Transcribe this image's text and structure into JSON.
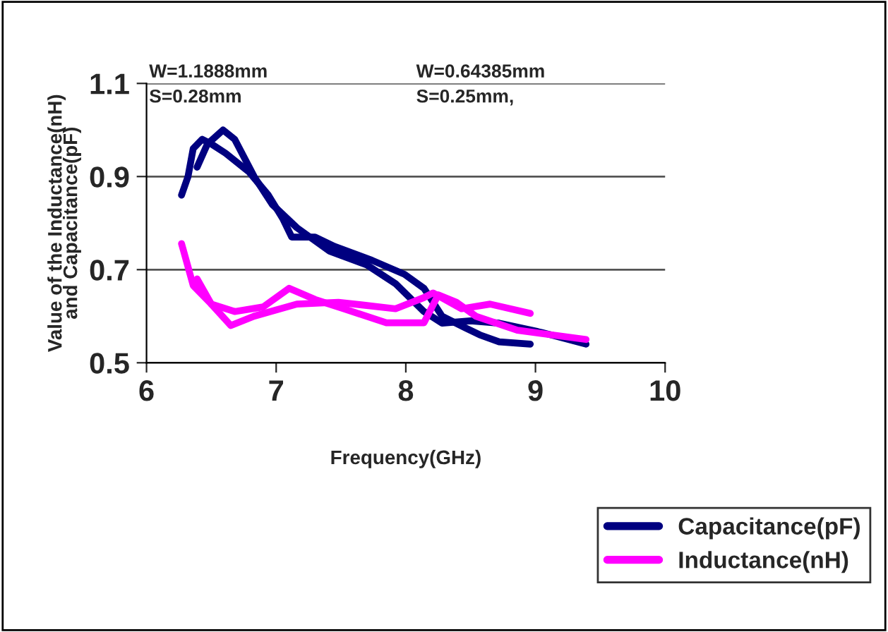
{
  "chart_data": {
    "type": "line",
    "xlabel": "Frequency(GHz)",
    "ylabel": "Value of the Inductance(nH)\nand Capacitance(pF)",
    "xlim": [
      6,
      10
    ],
    "xticks": [
      6,
      7,
      8,
      9,
      10
    ],
    "ylim": [
      0.5,
      1.1
    ],
    "yticks": [
      0.5,
      0.7,
      0.9,
      1.1
    ],
    "grid": "y",
    "legend": "bottom right",
    "line_style": "solid",
    "marker": "none",
    "annotations": [
      "W=1.1888mm",
      "S=0.28mm",
      "W=0.64385mm",
      "S=0.25mm,"
    ],
    "series": [
      {
        "name": "Capacitance(pF)",
        "color": "#000080",
        "x": [
          6.27,
          6.32,
          6.36,
          6.43,
          6.5,
          6.61,
          6.79,
          6.94,
          7.05,
          7.12,
          7.3,
          7.45,
          7.74,
          7.99,
          8.14,
          8.28,
          8.46,
          8.57,
          8.72,
          8.96
        ],
        "values": [
          0.86,
          0.9,
          0.96,
          0.98,
          0.97,
          0.95,
          0.91,
          0.86,
          0.81,
          0.77,
          0.77,
          0.75,
          0.72,
          0.69,
          0.66,
          0.6,
          0.575,
          0.56,
          0.545,
          0.54
        ]
      },
      {
        "color": "#000080",
        "x": [
          6.39,
          6.47,
          6.59,
          6.68,
          6.83,
          6.97,
          7.16,
          7.41,
          7.7,
          7.92,
          8.14,
          8.28,
          8.5,
          8.72,
          9.05,
          9.39
        ],
        "values": [
          0.92,
          0.97,
          1.0,
          0.98,
          0.9,
          0.84,
          0.79,
          0.74,
          0.71,
          0.67,
          0.61,
          0.585,
          0.59,
          0.585,
          0.565,
          0.54
        ]
      },
      {
        "name": "Inductance(nH)",
        "color": "#ff00ff",
        "x": [
          6.27,
          6.36,
          6.5,
          6.68,
          6.9,
          7.1,
          7.3,
          7.52,
          7.85,
          8.14,
          8.25,
          8.39,
          8.54,
          8.86,
          9.39
        ],
        "values": [
          0.756,
          0.666,
          0.626,
          0.61,
          0.62,
          0.66,
          0.636,
          0.616,
          0.586,
          0.586,
          0.646,
          0.63,
          0.6,
          0.57,
          0.55
        ]
      },
      {
        "color": "#ff00ff",
        "x": [
          6.39,
          6.5,
          6.65,
          6.83,
          7.16,
          7.48,
          7.92,
          8.14,
          8.21,
          8.43,
          8.65,
          8.96
        ],
        "values": [
          0.68,
          0.626,
          0.58,
          0.6,
          0.626,
          0.63,
          0.616,
          0.64,
          0.65,
          0.616,
          0.626,
          0.606
        ]
      }
    ]
  }
}
